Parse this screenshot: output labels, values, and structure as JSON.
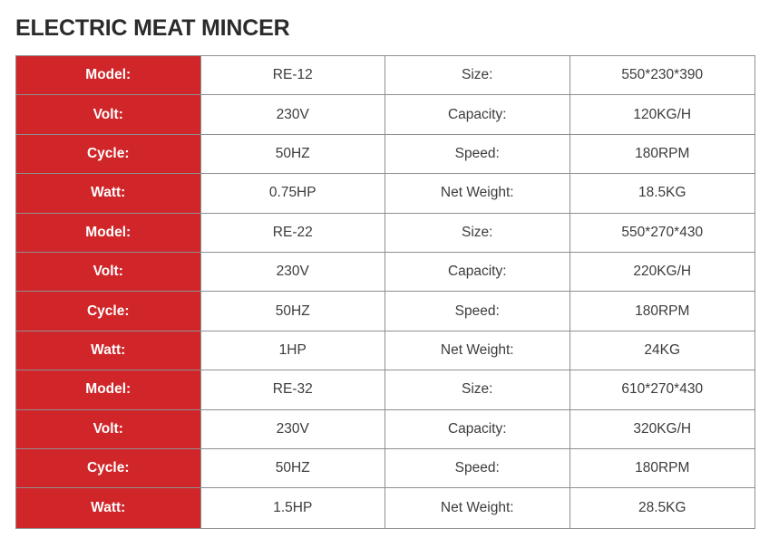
{
  "page_title": "ELECTRIC MEAT MINCER",
  "colors": {
    "accent_red": "#d0262a",
    "border": "#8f8f8f",
    "title": "#2b2b2b",
    "cell_text": "#3c3c3c",
    "red_cell_text": "#ffffff"
  },
  "table": {
    "rows": [
      [
        "Model:",
        "RE-12",
        "Size:",
        "550*230*390"
      ],
      [
        "Volt:",
        "230V",
        "Capacity:",
        "120KG/H"
      ],
      [
        "Cycle:",
        "50HZ",
        "Speed:",
        "180RPM"
      ],
      [
        "Watt:",
        "0.75HP",
        "Net Weight:",
        "18.5KG"
      ],
      [
        "Model:",
        "RE-22",
        "Size:",
        "550*270*430"
      ],
      [
        "Volt:",
        "230V",
        "Capacity:",
        "220KG/H"
      ],
      [
        "Cycle:",
        "50HZ",
        "Speed:",
        "180RPM"
      ],
      [
        "Watt:",
        "1HP",
        "Net Weight:",
        "24KG"
      ],
      [
        "Model:",
        "RE-32",
        "Size:",
        "610*270*430"
      ],
      [
        "Volt:",
        "230V",
        "Capacity:",
        "320KG/H"
      ],
      [
        "Cycle:",
        "50HZ",
        "Speed:",
        "180RPM"
      ],
      [
        "Watt:",
        "1.5HP",
        "Net Weight:",
        "28.5KG"
      ]
    ]
  }
}
